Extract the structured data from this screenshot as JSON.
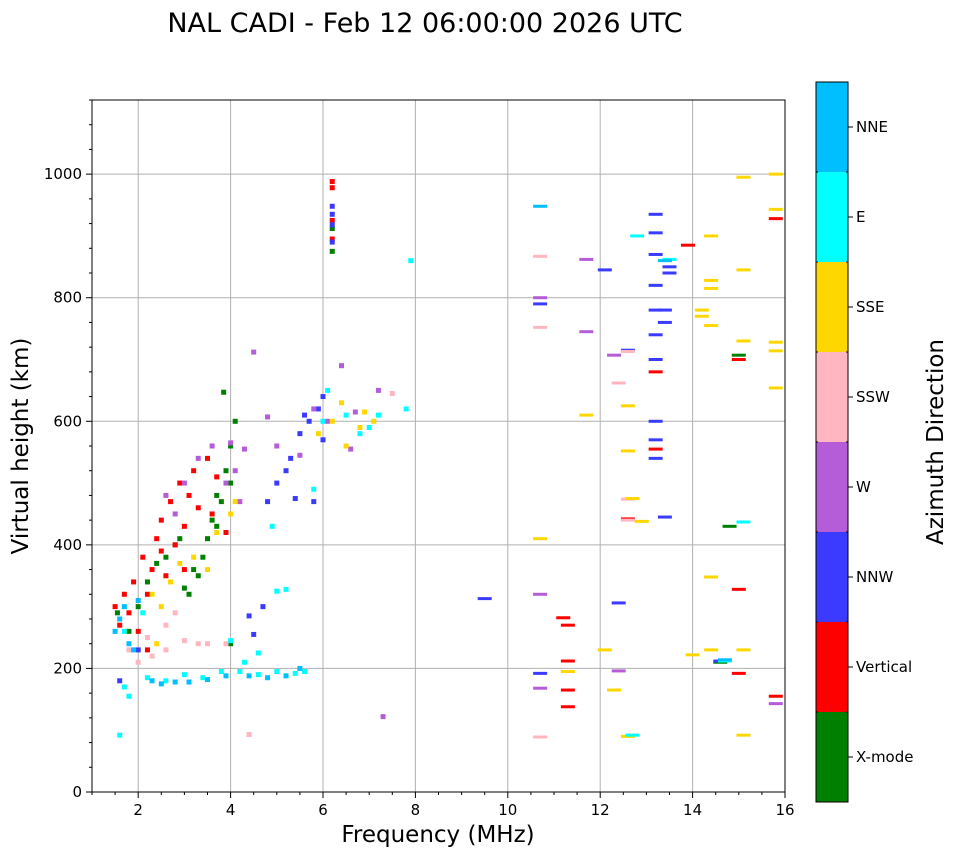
{
  "chart_data": {
    "type": "scatter",
    "title": "NAL CADI - Feb 12 06:00:00 2026 UTC",
    "xlabel": "Frequency (MHz)",
    "ylabel": "Virtual height (km)",
    "xlim": [
      1,
      16
    ],
    "ylim": [
      0,
      1120
    ],
    "xticks": [
      "2",
      "4",
      "6",
      "8",
      "10",
      "12",
      "14",
      "16"
    ],
    "yticks": [
      "0",
      "200",
      "400",
      "600",
      "800",
      "1000"
    ],
    "grid": true,
    "colorbar": {
      "label": "Azimuth Direction",
      "categories": [
        "X-mode",
        "Vertical",
        "NNW",
        "W",
        "SSW",
        "SSE",
        "E",
        "NNE"
      ],
      "colors": [
        "#008000",
        "#ff0000",
        "#3b3bff",
        "#b55cd8",
        "#ffb6c1",
        "#ffd700",
        "#00ffff",
        "#00bfff"
      ]
    },
    "series": [
      {
        "name": "X-mode",
        "points": [
          [
            1.55,
            290
          ],
          [
            1.8,
            260
          ],
          [
            2.0,
            300
          ],
          [
            2.2,
            340
          ],
          [
            2.4,
            370
          ],
          [
            2.6,
            380
          ],
          [
            2.8,
            400
          ],
          [
            3.0,
            330
          ],
          [
            3.2,
            360
          ],
          [
            3.4,
            380
          ],
          [
            3.5,
            410
          ],
          [
            3.6,
            440
          ],
          [
            3.8,
            470
          ],
          [
            3.9,
            520
          ],
          [
            4.0,
            560
          ],
          [
            4.1,
            600
          ],
          [
            4.0,
            500
          ],
          [
            3.7,
            430
          ],
          [
            3.3,
            350
          ],
          [
            3.1,
            320
          ],
          [
            4.0,
            240
          ],
          [
            3.7,
            480
          ],
          [
            3.85,
            647
          ],
          [
            2.9,
            410
          ],
          [
            14.6,
            210
          ],
          [
            14.8,
            430
          ],
          [
            15.0,
            707
          ],
          [
            6.2,
            875
          ],
          [
            6.2,
            912
          ]
        ]
      },
      {
        "name": "Vertical",
        "points": [
          [
            1.5,
            300
          ],
          [
            1.6,
            270
          ],
          [
            1.7,
            320
          ],
          [
            1.8,
            290
          ],
          [
            1.9,
            340
          ],
          [
            2.0,
            260
          ],
          [
            2.1,
            380
          ],
          [
            2.2,
            320
          ],
          [
            2.3,
            360
          ],
          [
            2.4,
            410
          ],
          [
            2.5,
            440
          ],
          [
            2.6,
            350
          ],
          [
            2.7,
            470
          ],
          [
            2.8,
            400
          ],
          [
            2.9,
            500
          ],
          [
            3.0,
            430
          ],
          [
            3.1,
            480
          ],
          [
            3.2,
            520
          ],
          [
            3.3,
            460
          ],
          [
            3.5,
            540
          ],
          [
            3.7,
            510
          ],
          [
            2.2,
            230
          ],
          [
            2.5,
            390
          ],
          [
            3.0,
            360
          ],
          [
            3.6,
            450
          ],
          [
            3.9,
            420
          ],
          [
            6.2,
            988
          ],
          [
            6.2,
            978
          ],
          [
            6.2,
            925
          ],
          [
            6.2,
            895
          ],
          [
            11.2,
            282
          ],
          [
            11.3,
            270
          ],
          [
            11.3,
            212
          ],
          [
            11.3,
            165
          ],
          [
            11.3,
            138
          ],
          [
            13.2,
            555
          ],
          [
            13.2,
            680
          ],
          [
            13.9,
            885
          ],
          [
            15.0,
            700
          ],
          [
            15.0,
            328
          ],
          [
            15.0,
            192
          ],
          [
            15.8,
            928
          ],
          [
            15.8,
            155
          ],
          [
            12.6,
            442
          ]
        ]
      },
      {
        "name": "NNW",
        "points": [
          [
            6.2,
            948
          ],
          [
            6.2,
            935
          ],
          [
            6.2,
            918
          ],
          [
            6.2,
            890
          ],
          [
            13.2,
            935
          ],
          [
            13.2,
            905
          ],
          [
            13.2,
            870
          ],
          [
            13.2,
            820
          ],
          [
            13.2,
            780
          ],
          [
            13.2,
            740
          ],
          [
            13.2,
            700
          ],
          [
            13.2,
            600
          ],
          [
            13.2,
            570
          ],
          [
            13.2,
            540
          ],
          [
            13.4,
            780
          ],
          [
            13.4,
            760
          ],
          [
            13.5,
            850
          ],
          [
            13.5,
            840
          ],
          [
            13.4,
            445
          ],
          [
            12.6,
            715
          ],
          [
            12.1,
            845
          ],
          [
            12.4,
            306
          ],
          [
            9.5,
            313
          ],
          [
            14.6,
            212
          ],
          [
            10.7,
            192
          ],
          [
            10.7,
            790
          ],
          [
            5.5,
            580
          ],
          [
            5.7,
            600
          ],
          [
            5.9,
            620
          ],
          [
            6.0,
            640
          ],
          [
            5.2,
            520
          ],
          [
            5.0,
            500
          ],
          [
            4.8,
            470
          ],
          [
            5.3,
            540
          ],
          [
            5.6,
            610
          ],
          [
            4.4,
            285
          ],
          [
            4.5,
            255
          ],
          [
            6.0,
            570
          ],
          [
            5.8,
            470
          ],
          [
            5.4,
            475
          ],
          [
            4.7,
            300
          ],
          [
            1.6,
            180
          ],
          [
            2.0,
            230
          ]
        ]
      },
      {
        "name": "W",
        "points": [
          [
            4.5,
            712
          ],
          [
            4.3,
            555
          ],
          [
            4.1,
            520
          ],
          [
            4.0,
            565
          ],
          [
            3.9,
            500
          ],
          [
            4.2,
            470
          ],
          [
            5.0,
            560
          ],
          [
            5.5,
            545
          ],
          [
            5.8,
            620
          ],
          [
            6.1,
            600
          ],
          [
            6.4,
            690
          ],
          [
            6.6,
            555
          ],
          [
            6.7,
            615
          ],
          [
            7.2,
            650
          ],
          [
            7.3,
            122
          ],
          [
            4.8,
            607
          ],
          [
            3.6,
            560
          ],
          [
            3.3,
            540
          ],
          [
            3.0,
            500
          ],
          [
            2.8,
            450
          ],
          [
            2.6,
            480
          ],
          [
            10.7,
            320
          ],
          [
            10.7,
            800
          ],
          [
            10.7,
            168
          ],
          [
            11.7,
            862
          ],
          [
            11.7,
            745
          ],
          [
            12.3,
            707
          ],
          [
            12.4,
            196
          ],
          [
            15.8,
            143
          ]
        ]
      },
      {
        "name": "SSW",
        "points": [
          [
            1.8,
            230
          ],
          [
            2.0,
            210
          ],
          [
            2.3,
            220
          ],
          [
            2.6,
            230
          ],
          [
            2.8,
            290
          ],
          [
            3.0,
            245
          ],
          [
            3.3,
            240
          ],
          [
            3.5,
            240
          ],
          [
            3.9,
            240
          ],
          [
            4.4,
            93
          ],
          [
            2.6,
            270
          ],
          [
            2.2,
            250
          ],
          [
            10.7,
            867
          ],
          [
            10.7,
            752
          ],
          [
            10.7,
            89
          ],
          [
            12.4,
            662
          ],
          [
            12.6,
            713
          ],
          [
            12.6,
            474
          ],
          [
            12.6,
            440
          ],
          [
            12.7,
            92
          ],
          [
            7.5,
            645
          ]
        ]
      },
      {
        "name": "SSE",
        "points": [
          [
            2.3,
            320
          ],
          [
            2.5,
            300
          ],
          [
            2.7,
            340
          ],
          [
            2.9,
            370
          ],
          [
            3.2,
            380
          ],
          [
            3.5,
            360
          ],
          [
            3.7,
            420
          ],
          [
            4.0,
            450
          ],
          [
            4.1,
            470
          ],
          [
            5.9,
            580
          ],
          [
            6.2,
            600
          ],
          [
            6.4,
            630
          ],
          [
            6.5,
            560
          ],
          [
            6.8,
            590
          ],
          [
            6.9,
            615
          ],
          [
            7.1,
            600
          ],
          [
            2.4,
            240
          ],
          [
            10.7,
            410
          ],
          [
            11.3,
            195
          ],
          [
            11.7,
            610
          ],
          [
            12.1,
            230
          ],
          [
            12.3,
            165
          ],
          [
            12.6,
            625
          ],
          [
            12.6,
            552
          ],
          [
            12.7,
            475
          ],
          [
            12.9,
            438
          ],
          [
            12.6,
            90
          ],
          [
            14.0,
            222
          ],
          [
            14.2,
            780
          ],
          [
            14.2,
            770
          ],
          [
            14.4,
            900
          ],
          [
            14.4,
            828
          ],
          [
            14.4,
            815
          ],
          [
            14.4,
            755
          ],
          [
            14.4,
            348
          ],
          [
            14.4,
            230
          ],
          [
            15.1,
            995
          ],
          [
            15.1,
            845
          ],
          [
            15.1,
            730
          ],
          [
            15.1,
            230
          ],
          [
            15.1,
            92
          ],
          [
            15.8,
            1000
          ],
          [
            15.8,
            943
          ],
          [
            15.8,
            728
          ],
          [
            15.8,
            714
          ],
          [
            15.8,
            654
          ]
        ]
      },
      {
        "name": "E",
        "points": [
          [
            1.6,
            92
          ],
          [
            1.7,
            170
          ],
          [
            1.8,
            155
          ],
          [
            2.2,
            185
          ],
          [
            2.6,
            180
          ],
          [
            3.0,
            190
          ],
          [
            3.4,
            185
          ],
          [
            3.8,
            195
          ],
          [
            4.2,
            195
          ],
          [
            4.6,
            190
          ],
          [
            5.0,
            195
          ],
          [
            5.4,
            192
          ],
          [
            5.6,
            195
          ],
          [
            4.3,
            210
          ],
          [
            4.6,
            225
          ],
          [
            4.0,
            245
          ],
          [
            4.9,
            430
          ],
          [
            5.0,
            325
          ],
          [
            5.2,
            328
          ],
          [
            5.8,
            490
          ],
          [
            6.0,
            600
          ],
          [
            6.5,
            610
          ],
          [
            6.8,
            580
          ],
          [
            7.0,
            590
          ],
          [
            7.2,
            610
          ],
          [
            7.8,
            620
          ],
          [
            7.9,
            860
          ],
          [
            6.1,
            650
          ],
          [
            1.7,
            260
          ],
          [
            2.1,
            290
          ],
          [
            12.8,
            900
          ],
          [
            13.5,
            862
          ],
          [
            12.7,
            92
          ],
          [
            15.1,
            437
          ],
          [
            14.7,
            212
          ]
        ]
      },
      {
        "name": "NNE",
        "points": [
          [
            1.5,
            260
          ],
          [
            1.6,
            280
          ],
          [
            1.7,
            300
          ],
          [
            1.9,
            230
          ],
          [
            2.0,
            310
          ],
          [
            2.3,
            180
          ],
          [
            2.5,
            175
          ],
          [
            2.8,
            178
          ],
          [
            3.1,
            178
          ],
          [
            3.5,
            182
          ],
          [
            3.9,
            188
          ],
          [
            4.4,
            188
          ],
          [
            4.8,
            185
          ],
          [
            5.2,
            188
          ],
          [
            5.5,
            200
          ],
          [
            1.8,
            240
          ],
          [
            10.7,
            948
          ],
          [
            13.4,
            860
          ],
          [
            14.7,
            214
          ]
        ]
      }
    ]
  }
}
